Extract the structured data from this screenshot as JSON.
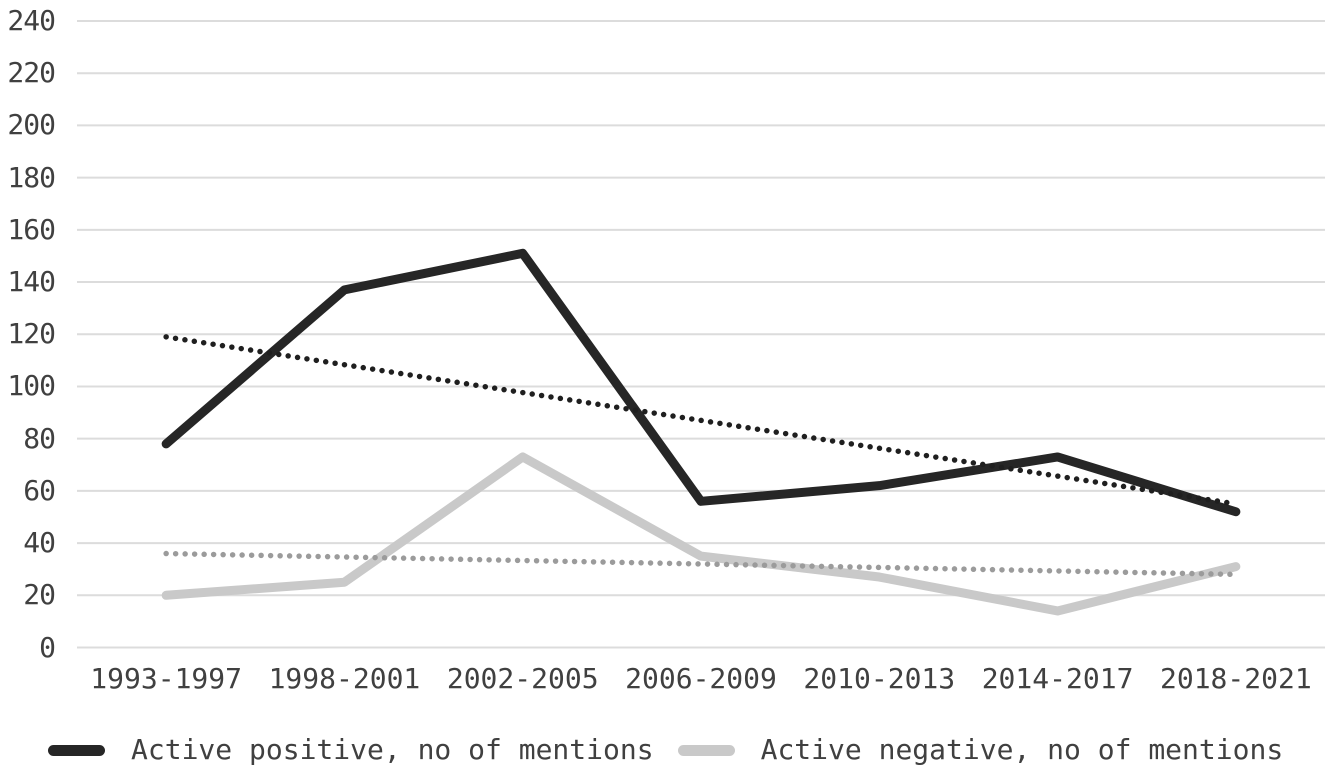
{
  "chart_data": {
    "type": "line",
    "title": "",
    "xlabel": "",
    "ylabel": "",
    "categories": [
      "1993-1997",
      "1998-2001",
      "2002-2005",
      "2006-2009",
      "2010-2013",
      "2014-2017",
      "2018-2021"
    ],
    "series": [
      {
        "name": "Active positive, no of mentions",
        "values": [
          78,
          137,
          151,
          56,
          62,
          73,
          52
        ],
        "color": "#262626",
        "line_style": "solid",
        "stroke_width": 9
      },
      {
        "name": "Active negative, no of mentions",
        "values": [
          20,
          25,
          73,
          35,
          27,
          14,
          31
        ],
        "color": "#c9c9c9",
        "line_style": "solid",
        "stroke_width": 9
      }
    ],
    "trendlines": [
      {
        "series": "Active negative, no of mentions",
        "start_value": 36,
        "end_value": 28,
        "color": "#9b9b9b",
        "line_style": "dotted"
      },
      {
        "series": "Active positive, no of mentions",
        "start_value": 119,
        "end_value": 55,
        "color": "#1f1f1f",
        "line_style": "dotted"
      }
    ],
    "y_axis": {
      "min": 0,
      "max": 240,
      "step": 20,
      "tick_labels": [
        "0",
        "20",
        "40",
        "60",
        "80",
        "100",
        "120",
        "140",
        "160",
        "180",
        "200",
        "220",
        "240"
      ]
    },
    "grid": "horizontal",
    "legend_position": "bottom"
  },
  "colors": {
    "background": "#ffffff",
    "gridline": "#dcdcdc",
    "tick_text": "#404040"
  }
}
